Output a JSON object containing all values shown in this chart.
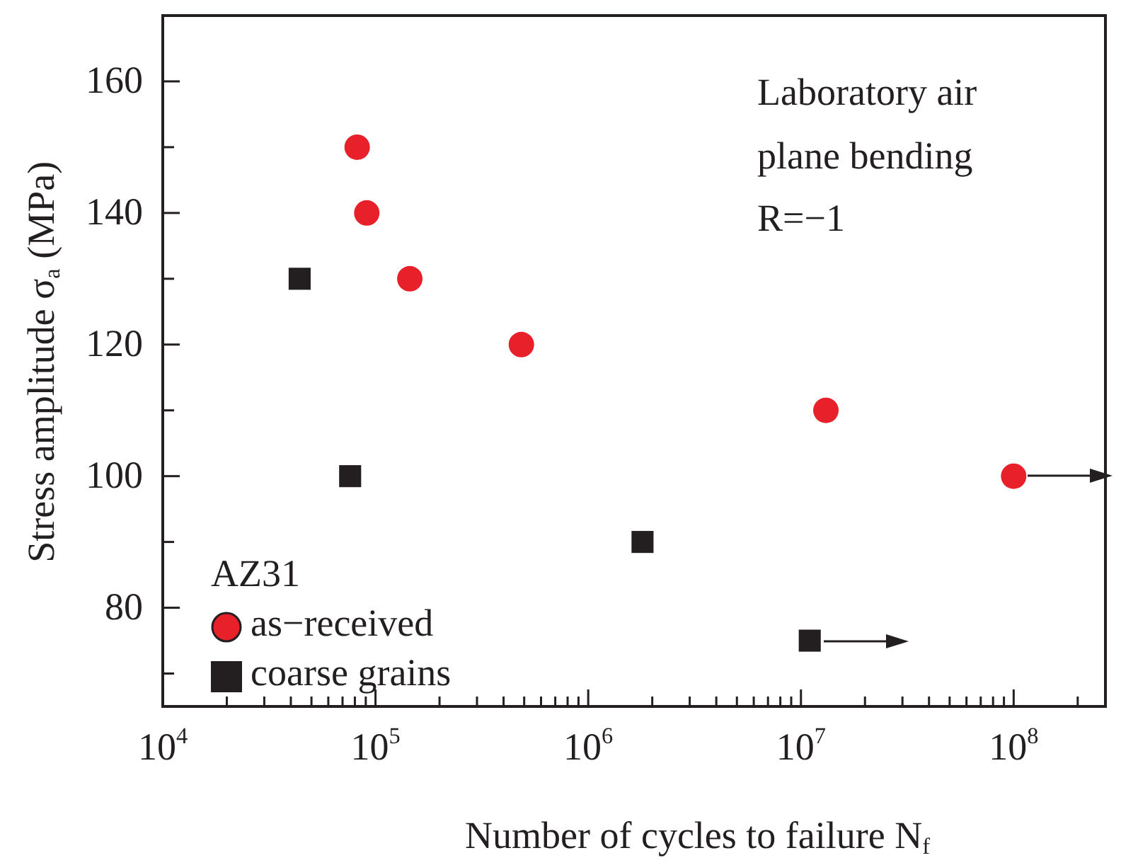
{
  "chart_data": {
    "type": "scatter",
    "xlabel": "Number of cycles to failure  N$_{f}$",
    "ylabel": "Stress amplitude σ$_{a}$  (MPa)",
    "legend_title": "AZ31",
    "legend": "bottom left",
    "log": "x",
    "grid": false,
    "xlim": [
      10000,
      270000000
    ],
    "ylim": [
      65,
      170
    ],
    "xticks": [
      {
        "value": 10000,
        "label": "10$^{4}$"
      },
      {
        "value": 20000,
        "label": null
      },
      {
        "value": 30000,
        "label": null
      },
      {
        "value": 40000,
        "label": null
      },
      {
        "value": 50000,
        "label": null
      },
      {
        "value": 60000,
        "label": null
      },
      {
        "value": 70000,
        "label": null
      },
      {
        "value": 80000,
        "label": null
      },
      {
        "value": 90000,
        "label": null
      },
      {
        "value": 100000,
        "label": "10$^{5}$"
      },
      {
        "value": 200000,
        "label": null
      },
      {
        "value": 300000,
        "label": null
      },
      {
        "value": 400000,
        "label": null
      },
      {
        "value": 500000,
        "label": null
      },
      {
        "value": 600000,
        "label": null
      },
      {
        "value": 700000,
        "label": null
      },
      {
        "value": 800000,
        "label": null
      },
      {
        "value": 900000,
        "label": null
      },
      {
        "value": 1000000,
        "label": "10$^{6}$"
      },
      {
        "value": 2000000,
        "label": null
      },
      {
        "value": 3000000,
        "label": null
      },
      {
        "value": 4000000,
        "label": null
      },
      {
        "value": 5000000,
        "label": null
      },
      {
        "value": 6000000,
        "label": null
      },
      {
        "value": 7000000,
        "label": null
      },
      {
        "value": 8000000,
        "label": null
      },
      {
        "value": 9000000,
        "label": null
      },
      {
        "value": 10000000,
        "label": "10$^{7}$"
      },
      {
        "value": 20000000,
        "label": null
      },
      {
        "value": 30000000,
        "label": null
      },
      {
        "value": 40000000,
        "label": null
      },
      {
        "value": 50000000,
        "label": null
      },
      {
        "value": 60000000,
        "label": null
      },
      {
        "value": 70000000,
        "label": null
      },
      {
        "value": 80000000,
        "label": null
      },
      {
        "value": 90000000,
        "label": null
      },
      {
        "value": 100000000,
        "label": "10$^{8}$"
      },
      {
        "value": 200000000,
        "label": null
      }
    ],
    "yticks": [
      {
        "value": 70,
        "label": null
      },
      80,
      {
        "value": 90,
        "label": null
      },
      100,
      {
        "value": 110,
        "label": null
      },
      120,
      {
        "value": 130,
        "label": null
      },
      140,
      {
        "value": 150,
        "label": null
      },
      160
    ],
    "annotations": [
      "Laboratory air",
      "plane bending",
      "R=−1"
    ],
    "series": [
      {
        "name": "as−received",
        "color": "#e8202a",
        "marker": "circle",
        "x": [
          82000,
          91000,
          145000,
          485000,
          13100000,
          100000000
        ],
        "values": [
          150,
          140,
          130,
          120,
          110,
          100
        ]
      },
      {
        "name": "coarse grains",
        "color": "#231f20",
        "marker": "square",
        "x": [
          44000,
          76000,
          1800000,
          11000000
        ],
        "values": [
          130,
          100,
          90,
          75
        ]
      }
    ]
  }
}
